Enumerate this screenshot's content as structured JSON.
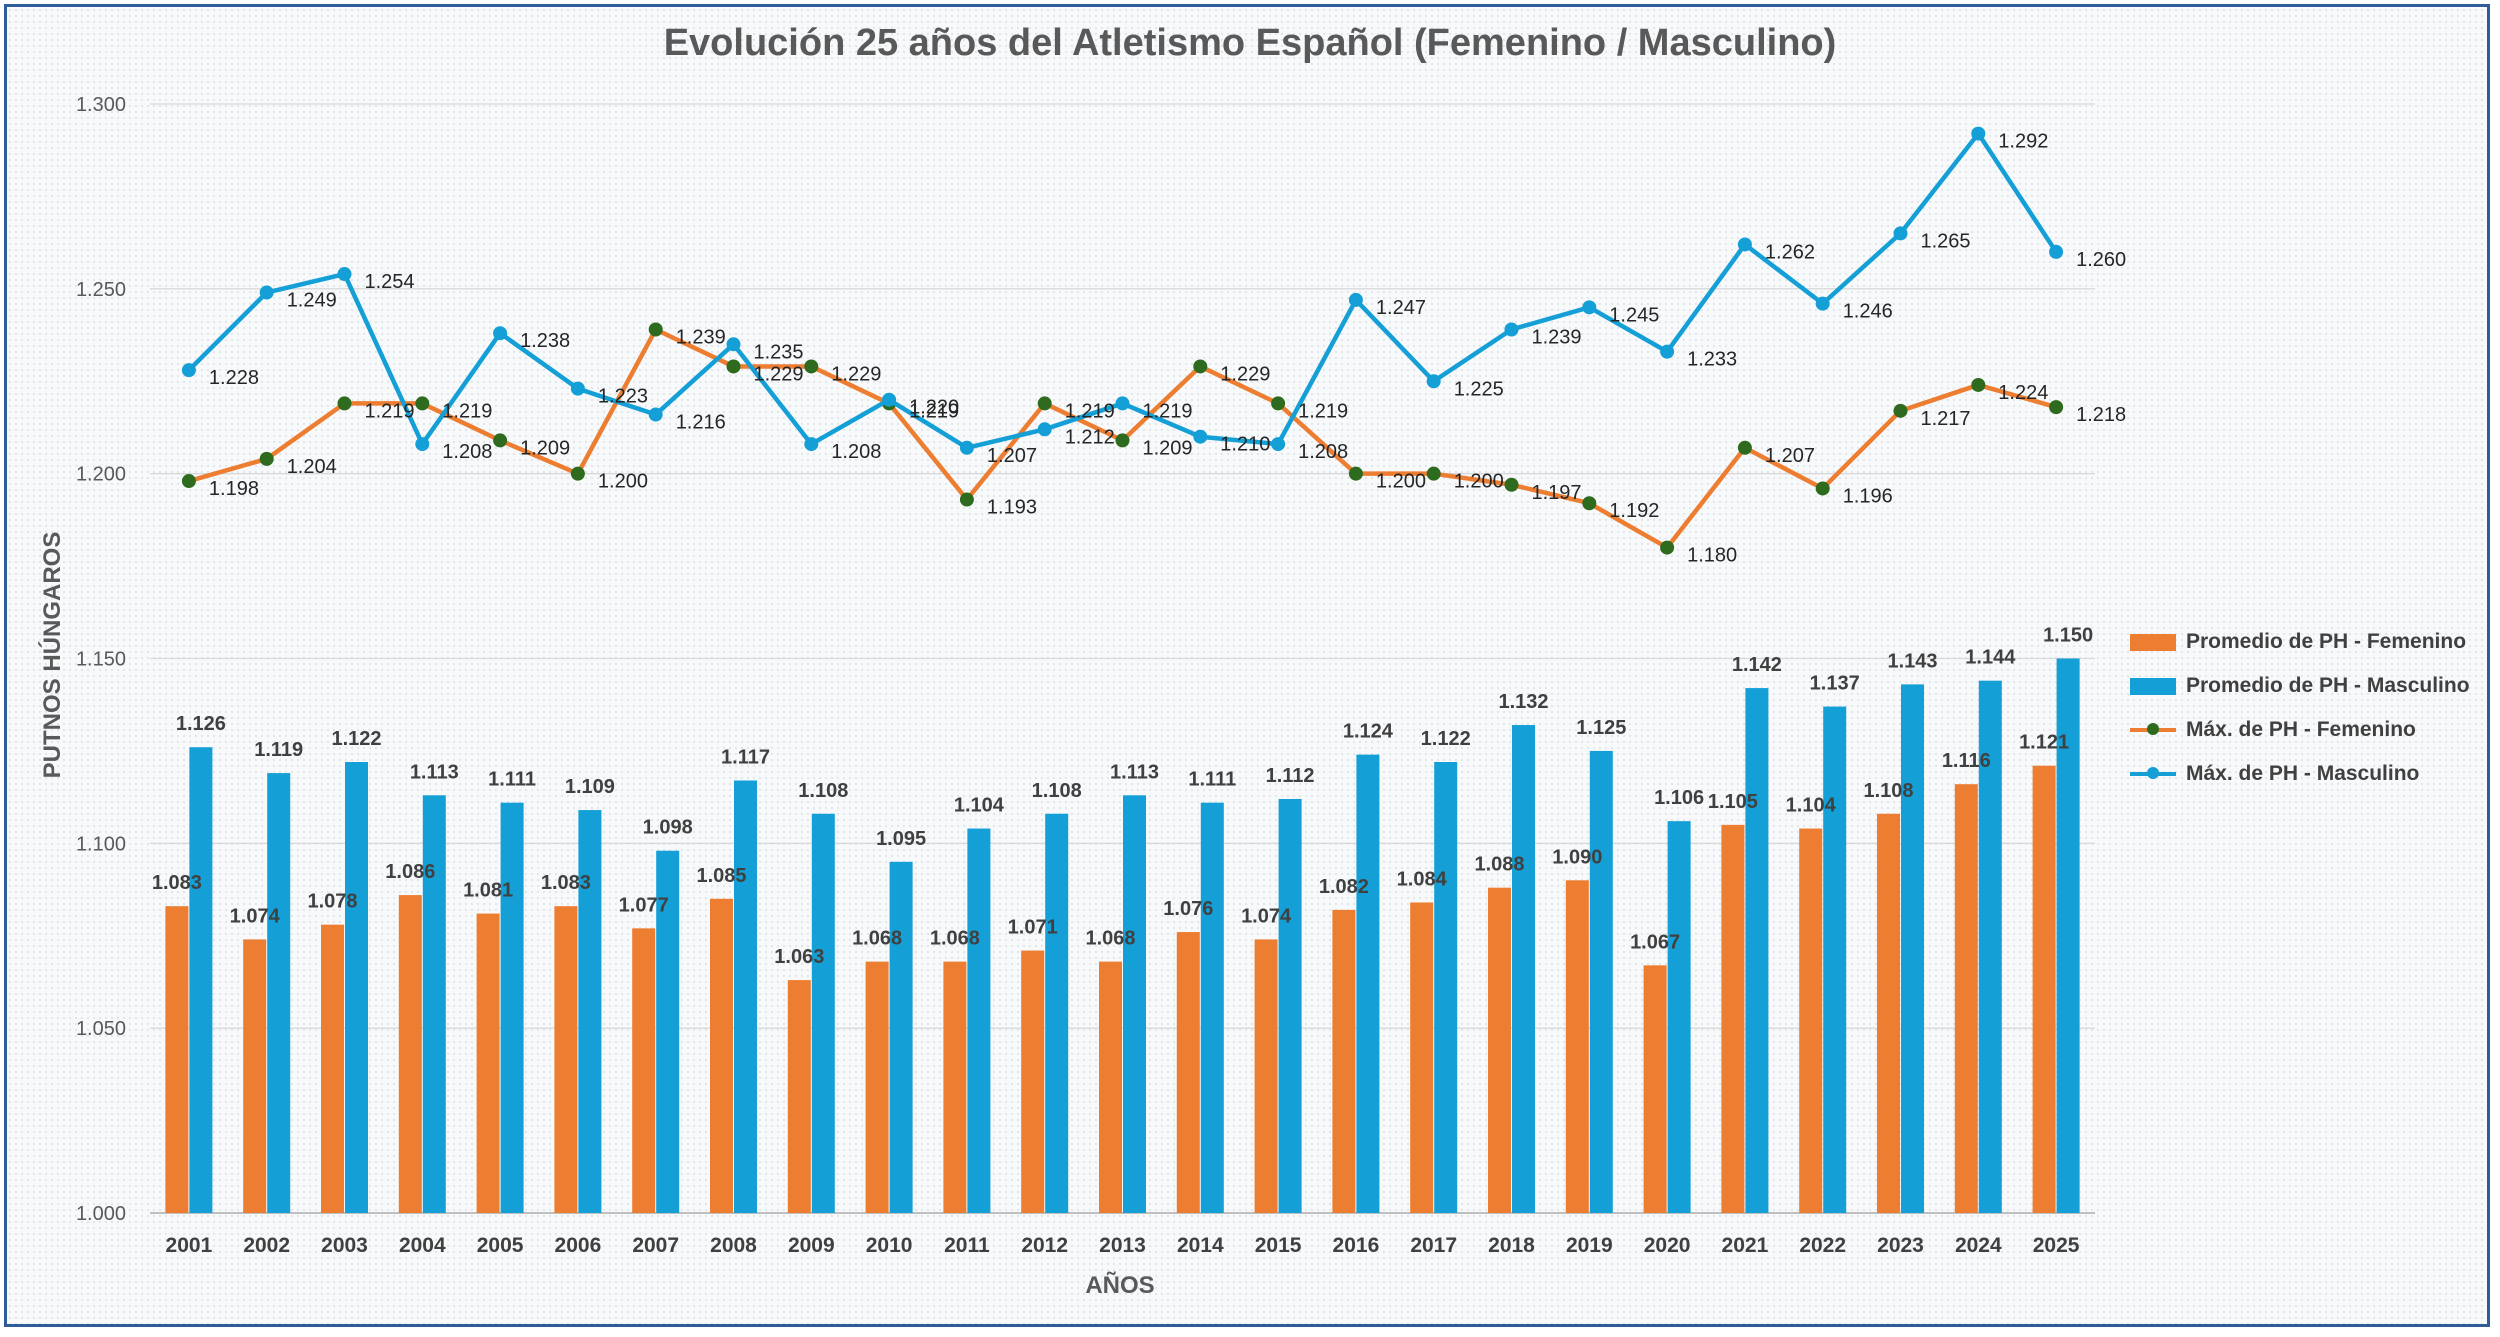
{
  "chart_data": {
    "type": "bar+line",
    "title": "Evolución 25 años del Atletismo Español (Femenino / Masculino)",
    "xlabel": "AÑOS",
    "ylabel": "PUTNOS HÚNGAROS",
    "ylim": [
      1.0,
      1.3
    ],
    "yticks": [
      "1.000",
      "1.050",
      "1.100",
      "1.150",
      "1.200",
      "1.250",
      "1.300"
    ],
    "ytick_values": [
      1.0,
      1.05,
      1.1,
      1.15,
      1.2,
      1.25,
      1.3
    ],
    "grid": true,
    "legend_position": "right",
    "categories": [
      "2001",
      "2002",
      "2003",
      "2004",
      "2005",
      "2006",
      "2007",
      "2008",
      "2009",
      "2010",
      "2011",
      "2012",
      "2013",
      "2014",
      "2015",
      "2016",
      "2017",
      "2018",
      "2019",
      "2020",
      "2021",
      "2022",
      "2023",
      "2024",
      "2025"
    ],
    "series": [
      {
        "name": "Promedio de PH - Femenino",
        "kind": "bar",
        "color": "#ed7d31",
        "values": [
          1.083,
          1.074,
          1.078,
          1.086,
          1.081,
          1.083,
          1.077,
          1.085,
          1.063,
          1.068,
          1.068,
          1.071,
          1.068,
          1.076,
          1.074,
          1.082,
          1.084,
          1.088,
          1.09,
          1.067,
          1.105,
          1.104,
          1.108,
          1.116,
          1.121
        ],
        "labels": [
          "1.083",
          "1.074",
          "1.078",
          "1.086",
          "1.081",
          "1.083",
          "1.077",
          "1.085",
          "1.063",
          "1.068",
          "1.068",
          "1.071",
          "1.068",
          "1.076",
          "1.074",
          "1.082",
          "1.084",
          "1.088",
          "1.090",
          "1.067",
          "1.105",
          "1.104",
          "1.108",
          "1.116",
          "1.121"
        ]
      },
      {
        "name": "Promedio de PH - Masculino",
        "kind": "bar",
        "color": "#149fd6",
        "values": [
          1.126,
          1.119,
          1.122,
          1.113,
          1.111,
          1.109,
          1.098,
          1.117,
          1.108,
          1.095,
          1.104,
          1.108,
          1.113,
          1.111,
          1.112,
          1.124,
          1.122,
          1.132,
          1.125,
          1.106,
          1.142,
          1.137,
          1.143,
          1.144,
          1.15
        ],
        "labels": [
          "1.126",
          "1.119",
          "1.122",
          "1.113",
          "1.111",
          "1.109",
          "1.098",
          "1.117",
          "1.108",
          "1.095",
          "1.104",
          "1.108",
          "1.113",
          "1.111",
          "1.112",
          "1.124",
          "1.122",
          "1.132",
          "1.125",
          "1.106",
          "1.142",
          "1.137",
          "1.143",
          "1.144",
          "1.150"
        ]
      },
      {
        "name": "Máx. de PH - Femenino",
        "kind": "line",
        "color": "#ed7d31",
        "marker_color": "#2e6b1e",
        "values": [
          1.198,
          1.204,
          1.219,
          1.219,
          1.209,
          1.2,
          1.239,
          1.229,
          1.229,
          1.219,
          1.193,
          1.219,
          1.209,
          1.229,
          1.219,
          1.2,
          1.2,
          1.197,
          1.192,
          1.18,
          1.207,
          1.196,
          1.217,
          1.224,
          1.218
        ],
        "labels": [
          "1.198",
          "1.204",
          "1.219",
          "1.219",
          "1.209",
          "1.200",
          "1.239",
          "1.229",
          "1.229",
          "1.219",
          "1.193",
          "1.219",
          "1.209",
          "1.229",
          "1.219",
          "1.200",
          "1.200",
          "1.197",
          "1.192",
          "1.180",
          "1.207",
          "1.196",
          "1.217",
          "1.224",
          "1.218"
        ]
      },
      {
        "name": "Máx. de PH - Masculino",
        "kind": "line",
        "color": "#149fd6",
        "marker_color": "#149fd6",
        "values": [
          1.228,
          1.249,
          1.254,
          1.208,
          1.238,
          1.223,
          1.216,
          1.235,
          1.208,
          1.22,
          1.207,
          1.212,
          1.219,
          1.21,
          1.208,
          1.247,
          1.225,
          1.239,
          1.245,
          1.233,
          1.262,
          1.246,
          1.265,
          1.292,
          1.26
        ],
        "labels": [
          "1.228",
          "1.249",
          "1.254",
          "1.208",
          "1.238",
          "1.223",
          "1.216",
          "1.235",
          "1.208",
          "1.220",
          "1.207",
          "1.212",
          "1.219",
          "1.210",
          "1.208",
          "1.247",
          "1.225",
          "1.239",
          "1.245",
          "1.233",
          "1.262",
          "1.246",
          "1.265",
          "1.292",
          "1.260"
        ]
      }
    ]
  }
}
